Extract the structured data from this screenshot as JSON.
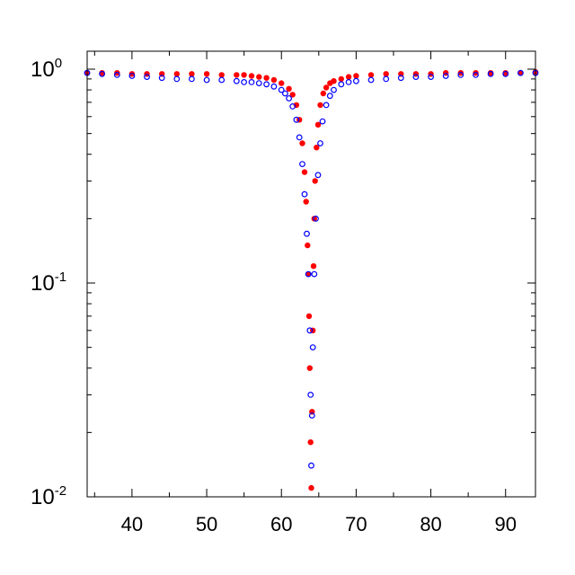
{
  "chart_data": {
    "type": "scatter",
    "title": "",
    "xlabel": "",
    "ylabel": "",
    "xlim": [
      34,
      94
    ],
    "ylim": [
      0.01,
      1.2
    ],
    "y_scale": "log",
    "grid": false,
    "legend": "none",
    "x_ticks": [
      "40",
      "50",
      "60",
      "70",
      "80",
      "90"
    ],
    "x_tick_values": [
      40,
      50,
      60,
      70,
      80,
      90
    ],
    "y_ticks": [
      {
        "value": 1,
        "base": "10",
        "exp": "0"
      },
      {
        "value": 0.1,
        "base": "10",
        "exp": "-1"
      },
      {
        "value": 0.01,
        "base": "10",
        "exp": "-2"
      }
    ],
    "series": [
      {
        "color": "#ff0000",
        "marker": "filled-circle",
        "x": [
          34,
          36,
          38,
          40,
          42,
          44,
          46,
          48,
          50,
          52,
          54,
          55,
          56,
          57,
          58,
          59,
          60,
          61,
          61.5,
          62,
          62.4,
          62.8,
          63.1,
          63.3,
          63.5,
          63.6,
          63.7,
          63.8,
          63.9,
          64.0,
          64.1,
          64.2,
          64.3,
          64.4,
          64.5,
          64.7,
          64.9,
          65.2,
          65.6,
          66,
          66.5,
          67,
          68,
          69,
          70,
          72,
          74,
          76,
          78,
          80,
          82,
          84,
          86,
          88,
          90,
          92,
          94
        ],
        "y": [
          0.96,
          0.96,
          0.96,
          0.95,
          0.95,
          0.95,
          0.95,
          0.95,
          0.95,
          0.94,
          0.94,
          0.94,
          0.93,
          0.92,
          0.91,
          0.89,
          0.86,
          0.81,
          0.76,
          0.68,
          0.58,
          0.45,
          0.33,
          0.24,
          0.15,
          0.11,
          0.07,
          0.04,
          0.018,
          0.011,
          0.025,
          0.06,
          0.12,
          0.2,
          0.3,
          0.43,
          0.55,
          0.68,
          0.77,
          0.82,
          0.86,
          0.88,
          0.9,
          0.92,
          0.93,
          0.94,
          0.95,
          0.95,
          0.95,
          0.95,
          0.96,
          0.96,
          0.96,
          0.96,
          0.96,
          0.96,
          0.97
        ]
      },
      {
        "color": "#0000ff",
        "marker": "open-circle",
        "x": [
          34,
          36,
          38,
          40,
          42,
          44,
          46,
          48,
          50,
          52,
          54,
          55,
          56,
          57,
          58,
          59,
          60,
          60.5,
          61,
          61.5,
          62,
          62.4,
          62.8,
          63.1,
          63.4,
          63.6,
          63.8,
          63.9,
          64.0,
          64.1,
          64.2,
          64.4,
          64.6,
          64.9,
          65.2,
          65.5,
          66,
          66.5,
          67,
          68,
          69,
          70,
          72,
          74,
          76,
          78,
          80,
          82,
          84,
          86,
          88,
          90,
          92,
          94
        ],
        "y": [
          0.96,
          0.95,
          0.94,
          0.93,
          0.92,
          0.91,
          0.9,
          0.9,
          0.89,
          0.89,
          0.88,
          0.87,
          0.87,
          0.86,
          0.85,
          0.83,
          0.8,
          0.77,
          0.73,
          0.67,
          0.58,
          0.48,
          0.36,
          0.26,
          0.17,
          0.11,
          0.06,
          0.03,
          0.014,
          0.024,
          0.05,
          0.11,
          0.2,
          0.32,
          0.45,
          0.57,
          0.68,
          0.75,
          0.8,
          0.85,
          0.87,
          0.88,
          0.89,
          0.9,
          0.91,
          0.92,
          0.92,
          0.93,
          0.94,
          0.94,
          0.95,
          0.95,
          0.96,
          0.96
        ]
      }
    ]
  }
}
